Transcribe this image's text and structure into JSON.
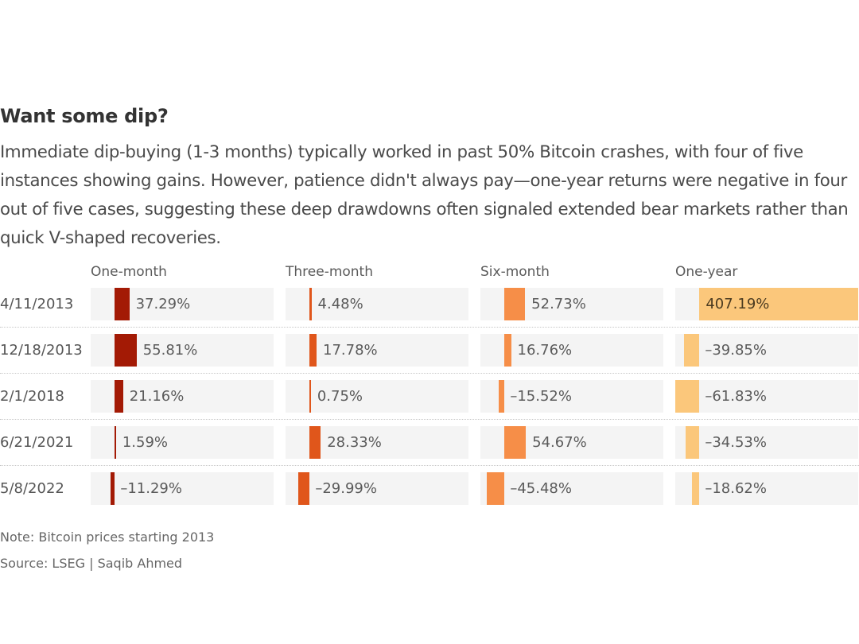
{
  "title": "Want some dip?",
  "subtitle": "Immediate dip-buying (1-3 months) typically worked in past 50% Bitcoin crashes, with four of five instances showing gains. However, patience didn't always pay—one-year returns were negative in four out of five cases, suggesting these deep drawdowns often signaled extended bear markets rather than quick V-shaped recoveries.",
  "footer": {
    "note": "Note: Bitcoin prices starting 2013",
    "source": "Source: LSEG | Saqib Ahmed"
  },
  "chart_data": {
    "type": "bar",
    "orientation": "horizontal",
    "layout": "small-multiples",
    "title": "Want some dip?",
    "unit": "%",
    "categories": [
      "4/11/2013",
      "12/18/2013",
      "2/1/2018",
      "6/21/2021",
      "5/8/2022"
    ],
    "xlim": [
      -61.83,
      407.19
    ],
    "series": [
      {
        "name": "One-month",
        "color": "#a31a05",
        "values": [
          37.29,
          55.81,
          21.16,
          1.59,
          -11.29
        ],
        "labels": [
          "37.29%",
          "55.81%",
          "21.16%",
          "1.59%",
          "–11.29%"
        ]
      },
      {
        "name": "Three-month",
        "color": "#e0561b",
        "values": [
          4.48,
          17.78,
          0.75,
          28.33,
          -29.99
        ],
        "labels": [
          "4.48%",
          "17.78%",
          "0.75%",
          "28.33%",
          "–29.99%"
        ]
      },
      {
        "name": "Six-month",
        "color": "#f68e48",
        "values": [
          52.73,
          16.76,
          -15.52,
          54.67,
          -45.48
        ],
        "labels": [
          "52.73%",
          "16.76%",
          "–15.52%",
          "54.67%",
          "–45.48%"
        ]
      },
      {
        "name": "One-year",
        "color": "#fbc77b",
        "values": [
          407.19,
          -39.85,
          -61.83,
          -34.53,
          -18.62
        ],
        "labels": [
          "407.19%",
          "–39.85%",
          "–61.83%",
          "–34.53%",
          "–18.62%"
        ]
      }
    ],
    "grid": false,
    "legend": "column-headers"
  }
}
